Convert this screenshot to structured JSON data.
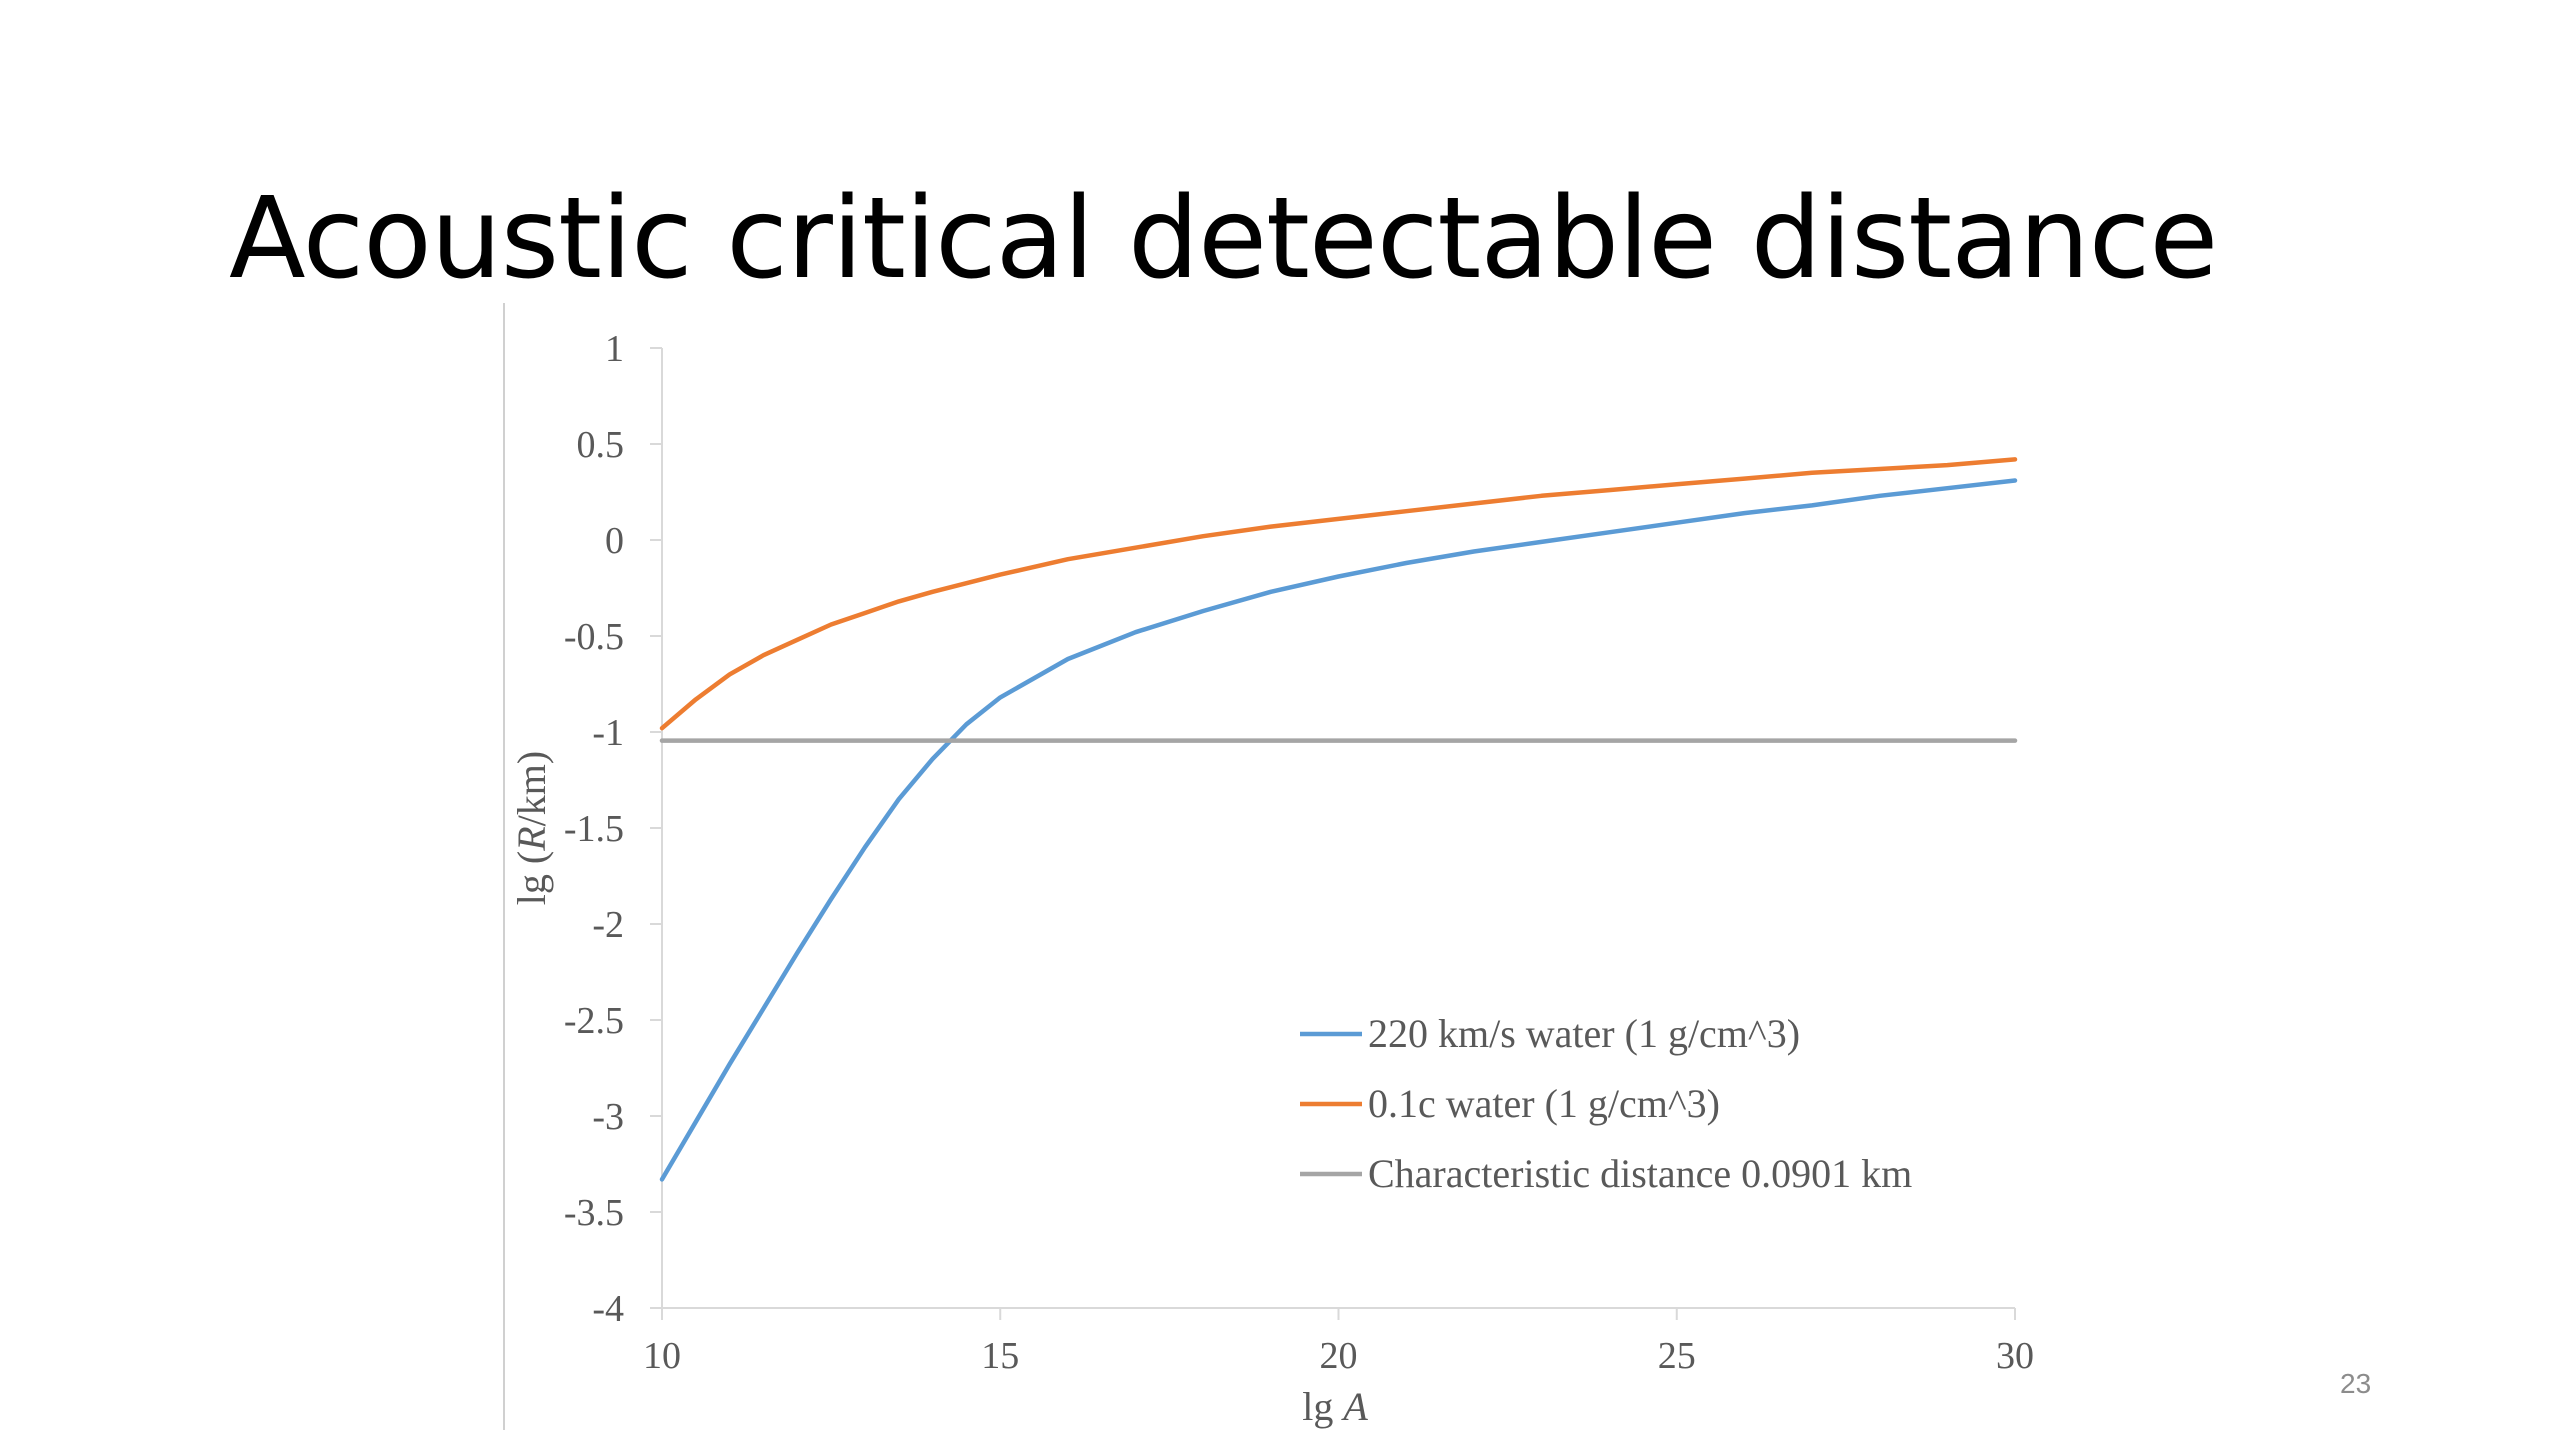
{
  "slide": {
    "title": "Acoustic critical detectable distance",
    "page_number": "23"
  },
  "chart_data": {
    "type": "line",
    "title": "",
    "xlabel": "lg A",
    "ylabel": "lg (R/km)",
    "xlim": [
      10,
      30
    ],
    "ylim": [
      -4,
      1
    ],
    "x_ticks": [
      "10",
      "15",
      "20",
      "25",
      "30"
    ],
    "y_ticks": [
      "1",
      "0.5",
      "0",
      "-0.5",
      "-1",
      "-1.5",
      "-2",
      "-2.5",
      "-3",
      "-3.5",
      "-4"
    ],
    "x_tick_values": [
      10,
      15,
      20,
      25,
      30
    ],
    "y_tick_values": [
      1,
      0.5,
      0,
      -0.5,
      -1,
      -1.5,
      -2,
      -2.5,
      -3,
      -3.5,
      -4
    ],
    "grid": false,
    "legend_position": "bottom-right",
    "series": [
      {
        "name": "220 km/s water (1 g/cm^3)",
        "color": "#5b9bd5",
        "x": [
          10,
          10.5,
          11,
          11.5,
          12,
          12.5,
          13,
          13.5,
          14,
          14.5,
          15,
          16,
          17,
          18,
          19,
          20,
          21,
          22,
          23,
          24,
          25,
          26,
          27,
          28,
          29,
          30
        ],
        "y": [
          -3.33,
          -3.03,
          -2.73,
          -2.44,
          -2.15,
          -1.87,
          -1.6,
          -1.35,
          -1.14,
          -0.96,
          -0.82,
          -0.62,
          -0.48,
          -0.37,
          -0.27,
          -0.19,
          -0.12,
          -0.06,
          -0.01,
          0.04,
          0.09,
          0.14,
          0.18,
          0.23,
          0.27,
          0.31
        ]
      },
      {
        "name": "0.1c water (1 g/cm^3)",
        "color": "#ed7d31",
        "x": [
          10,
          10.5,
          11,
          11.5,
          12,
          12.5,
          13,
          13.5,
          14,
          15,
          16,
          17,
          18,
          19,
          20,
          21,
          22,
          23,
          24,
          25,
          26,
          27,
          28,
          29,
          30
        ],
        "y": [
          -0.98,
          -0.83,
          -0.7,
          -0.6,
          -0.52,
          -0.44,
          -0.38,
          -0.32,
          -0.27,
          -0.18,
          -0.1,
          -0.04,
          0.02,
          0.07,
          0.11,
          0.15,
          0.19,
          0.23,
          0.26,
          0.29,
          0.32,
          0.35,
          0.37,
          0.39,
          0.42
        ]
      },
      {
        "name": "Characteristic distance 0.0901 km",
        "color": "#a5a5a5",
        "x": [
          10,
          30
        ],
        "y": [
          -1.045,
          -1.045
        ]
      }
    ]
  }
}
